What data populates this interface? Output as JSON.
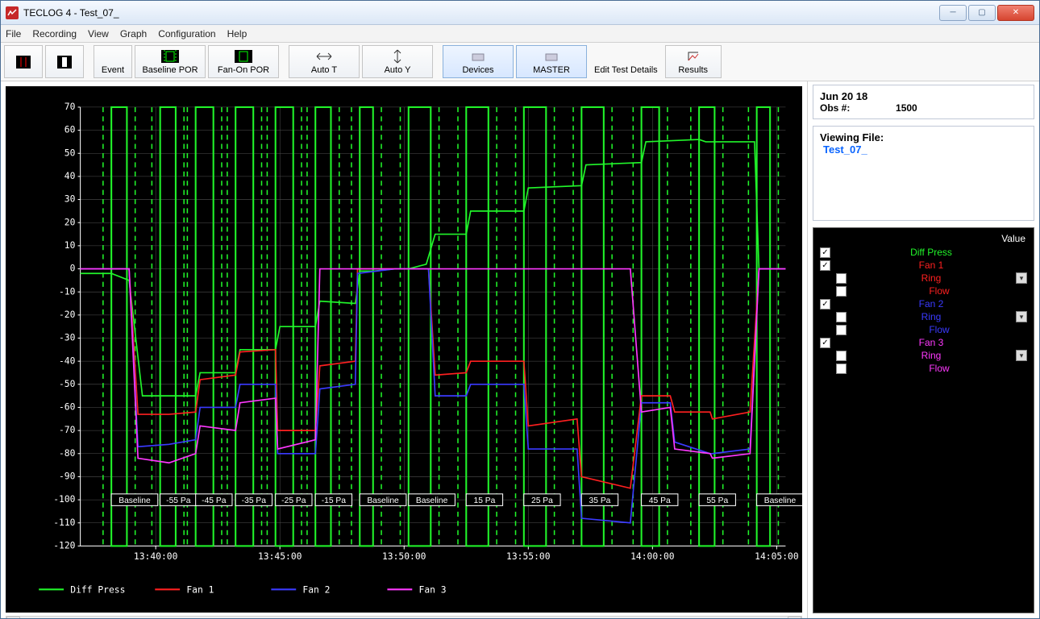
{
  "window": {
    "title": "TECLOG 4 - Test_07_"
  },
  "menu": [
    "File",
    "Recording",
    "View",
    "Graph",
    "Configuration",
    "Help"
  ],
  "toolbar": {
    "event": "Event",
    "baseline": "Baseline POR",
    "fanon": "Fan-On POR",
    "autoT": "Auto T",
    "autoY": "Auto Y",
    "devices": "Devices",
    "master": "MASTER",
    "edit": "Edit Test Details",
    "results": "Results"
  },
  "info": {
    "date": "Jun 20 18",
    "obs_label": "Obs #:",
    "obs": "1500"
  },
  "viewing": {
    "label": "Viewing File:",
    "file": "Test_07_"
  },
  "legend_header": "Value",
  "channels": [
    {
      "key": "diff",
      "label": "Diff Press",
      "color": "#21f52a",
      "checked": true,
      "children": []
    },
    {
      "key": "fan1",
      "label": "Fan 1",
      "color": "#ff2020",
      "checked": true,
      "children": [
        {
          "label": "Ring",
          "sel": true
        },
        {
          "label": "Flow"
        }
      ]
    },
    {
      "key": "fan2",
      "label": "Fan 2",
      "color": "#3a3aff",
      "checked": true,
      "children": [
        {
          "label": "Ring",
          "sel": true
        },
        {
          "label": "Flow"
        }
      ]
    },
    {
      "key": "fan3",
      "label": "Fan 3",
      "color": "#ff39ff",
      "checked": true,
      "children": [
        {
          "label": "Ring",
          "sel": true
        },
        {
          "label": "Flow"
        }
      ]
    }
  ],
  "chart": {
    "bg": "#000000",
    "grid": "#505050",
    "axis_color": "#ffffff",
    "ylim": [
      -120,
      70
    ],
    "ytick": 10,
    "xlim": [
      0,
      1590
    ],
    "xticks": [
      {
        "t": 170,
        "label": "13:40:00"
      },
      {
        "t": 450,
        "label": "13:45:00"
      },
      {
        "t": 730,
        "label": "13:50:00"
      },
      {
        "t": 1010,
        "label": "13:55:00"
      },
      {
        "t": 1290,
        "label": "14:00:00"
      },
      {
        "t": 1570,
        "label": "14:05:00"
      }
    ],
    "dashed_markers": [
      70,
      105,
      180,
      215,
      260,
      300,
      350,
      390,
      440,
      480,
      530,
      565,
      630,
      660,
      740,
      790,
      870,
      920,
      1000,
      1050,
      1130,
      1180,
      1265,
      1305,
      1395,
      1430,
      1525,
      1555
    ],
    "region_pairs": [
      [
        70,
        105
      ],
      [
        180,
        215
      ],
      [
        260,
        300
      ],
      [
        350,
        390
      ],
      [
        440,
        480
      ],
      [
        530,
        565
      ],
      [
        630,
        660
      ],
      [
        740,
        790
      ],
      [
        870,
        920
      ],
      [
        1000,
        1050
      ],
      [
        1130,
        1180
      ],
      [
        1265,
        1305
      ],
      [
        1395,
        1430
      ],
      [
        1525,
        1555
      ]
    ],
    "region_labels": [
      "Baseline",
      "-55 Pa",
      "-45 Pa",
      "-35 Pa",
      "-25 Pa",
      "-15 Pa",
      "Baseline",
      "Baseline",
      "15 Pa",
      "25 Pa",
      "35 Pa",
      "45 Pa",
      "55 Pa",
      "Baseline"
    ],
    "series": {
      "diff": {
        "color": "#21f52a",
        "pts": [
          [
            0,
            -2
          ],
          [
            70,
            -2
          ],
          [
            110,
            -5
          ],
          [
            140,
            -55
          ],
          [
            200,
            -55
          ],
          [
            260,
            -55
          ],
          [
            270,
            -45
          ],
          [
            350,
            -45
          ],
          [
            360,
            -35
          ],
          [
            440,
            -35
          ],
          [
            450,
            -25
          ],
          [
            530,
            -25
          ],
          [
            540,
            -14
          ],
          [
            620,
            -15
          ],
          [
            630,
            -1
          ],
          [
            660,
            -1
          ],
          [
            710,
            0
          ],
          [
            740,
            0
          ],
          [
            780,
            2
          ],
          [
            800,
            15
          ],
          [
            870,
            15
          ],
          [
            880,
            25
          ],
          [
            1000,
            25
          ],
          [
            1010,
            35
          ],
          [
            1130,
            36
          ],
          [
            1140,
            45
          ],
          [
            1265,
            46
          ],
          [
            1275,
            55
          ],
          [
            1395,
            56
          ],
          [
            1410,
            55
          ],
          [
            1520,
            55
          ],
          [
            1530,
            0
          ],
          [
            1590,
            0
          ]
        ]
      },
      "fan1": {
        "color": "#ff2020",
        "pts": [
          [
            0,
            0
          ],
          [
            110,
            0
          ],
          [
            130,
            -63
          ],
          [
            200,
            -63
          ],
          [
            260,
            -62
          ],
          [
            270,
            -48
          ],
          [
            350,
            -46
          ],
          [
            360,
            -36
          ],
          [
            440,
            -35
          ],
          [
            445,
            -70
          ],
          [
            530,
            -70
          ],
          [
            540,
            -42
          ],
          [
            620,
            -40
          ],
          [
            625,
            0
          ],
          [
            710,
            0
          ],
          [
            740,
            0
          ],
          [
            785,
            0
          ],
          [
            800,
            -46
          ],
          [
            870,
            -45
          ],
          [
            880,
            -40
          ],
          [
            1000,
            -40
          ],
          [
            1010,
            -68
          ],
          [
            1120,
            -65
          ],
          [
            1130,
            -90
          ],
          [
            1240,
            -95
          ],
          [
            1265,
            -55
          ],
          [
            1330,
            -55
          ],
          [
            1340,
            -62
          ],
          [
            1420,
            -62
          ],
          [
            1425,
            -65
          ],
          [
            1510,
            -62
          ],
          [
            1530,
            0
          ],
          [
            1590,
            0
          ]
        ]
      },
      "fan2": {
        "color": "#3a3aff",
        "pts": [
          [
            0,
            0
          ],
          [
            110,
            0
          ],
          [
            130,
            -77
          ],
          [
            200,
            -76
          ],
          [
            260,
            -74
          ],
          [
            270,
            -60
          ],
          [
            350,
            -60
          ],
          [
            360,
            -50
          ],
          [
            440,
            -50
          ],
          [
            445,
            -80
          ],
          [
            530,
            -80
          ],
          [
            540,
            -52
          ],
          [
            620,
            -50
          ],
          [
            625,
            -2
          ],
          [
            710,
            0
          ],
          [
            740,
            0
          ],
          [
            785,
            0
          ],
          [
            800,
            -55
          ],
          [
            870,
            -55
          ],
          [
            880,
            -50
          ],
          [
            1000,
            -50
          ],
          [
            1010,
            -78
          ],
          [
            1120,
            -78
          ],
          [
            1130,
            -108
          ],
          [
            1240,
            -110
          ],
          [
            1265,
            -58
          ],
          [
            1330,
            -58
          ],
          [
            1340,
            -75
          ],
          [
            1420,
            -80
          ],
          [
            1425,
            -80
          ],
          [
            1510,
            -78
          ],
          [
            1530,
            0
          ],
          [
            1590,
            0
          ]
        ]
      },
      "fan3": {
        "color": "#ff39ff",
        "pts": [
          [
            0,
            0
          ],
          [
            110,
            0
          ],
          [
            130,
            -82
          ],
          [
            200,
            -84
          ],
          [
            260,
            -80
          ],
          [
            270,
            -68
          ],
          [
            350,
            -70
          ],
          [
            360,
            -58
          ],
          [
            440,
            -56
          ],
          [
            445,
            -78
          ],
          [
            530,
            -74
          ],
          [
            540,
            0
          ],
          [
            620,
            0
          ],
          [
            625,
            0
          ],
          [
            710,
            0
          ],
          [
            740,
            0
          ],
          [
            785,
            0
          ],
          [
            800,
            0
          ],
          [
            870,
            0
          ],
          [
            880,
            0
          ],
          [
            1000,
            0
          ],
          [
            1010,
            0
          ],
          [
            1120,
            0
          ],
          [
            1130,
            0
          ],
          [
            1240,
            0
          ],
          [
            1265,
            -62
          ],
          [
            1330,
            -60
          ],
          [
            1340,
            -78
          ],
          [
            1420,
            -80
          ],
          [
            1425,
            -82
          ],
          [
            1510,
            -80
          ],
          [
            1530,
            0
          ],
          [
            1590,
            0
          ]
        ]
      }
    },
    "bottom_legend": [
      {
        "label": "Diff Press",
        "color": "#21f52a"
      },
      {
        "label": "Fan 1",
        "color": "#ff2020"
      },
      {
        "label": "Fan 2",
        "color": "#3a3aff"
      },
      {
        "label": "Fan 3",
        "color": "#ff39ff"
      }
    ]
  }
}
